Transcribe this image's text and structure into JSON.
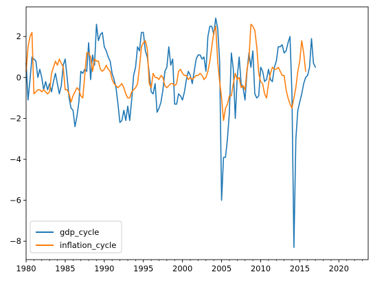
{
  "chart_data": {
    "type": "line",
    "title": "",
    "xlabel": "",
    "ylabel": "",
    "xlim": [
      1980.0,
      2023.75
    ],
    "ylim": [
      -8.9,
      3.45
    ],
    "x_ticks": [
      1980,
      1985,
      1990,
      1995,
      2000,
      2005,
      2010,
      2015,
      2020
    ],
    "y_ticks": [
      -8,
      -6,
      -4,
      -2,
      0,
      2
    ],
    "grid": false,
    "legend_position": "lower-left",
    "x_frequency": "quarterly",
    "x_start": 1980.0,
    "series": [
      {
        "name": "gdp_cycle",
        "color": "#1f77b4",
        "values": [
          0.7,
          -1.1,
          -0.1,
          1.0,
          0.9,
          0.8,
          0.0,
          0.4,
          0.0,
          -0.6,
          -0.2,
          -0.6,
          -0.3,
          -0.7,
          -0.2,
          0.2,
          -0.3,
          -0.8,
          -0.4,
          0.6,
          0.9,
          0.0,
          -1.0,
          -1.5,
          -1.6,
          -2.4,
          -1.9,
          -1.2,
          0.3,
          0.2,
          0.4,
          0.3,
          1.7,
          -0.1,
          1.1,
          0.6,
          2.6,
          1.8,
          2.1,
          2.2,
          1.5,
          1.3,
          1.0,
          0.8,
          0.2,
          -0.1,
          -0.5,
          -1.3,
          -2.2,
          -2.1,
          -1.6,
          -2.1,
          -1.4,
          -2.1,
          -1.1,
          0.1,
          0.5,
          1.5,
          1.3,
          2.2,
          2.2,
          1.3,
          1.0,
          0.2,
          -0.7,
          -0.8,
          -0.3,
          -1.7,
          -1.5,
          -1.2,
          -0.6,
          0.3,
          0.5,
          1.5,
          0.6,
          0.9,
          -1.3,
          -1.3,
          -0.8,
          -0.9,
          -1.1,
          -0.7,
          -0.1,
          0.3,
          0.1,
          -0.3,
          0.3,
          0.9,
          1.1,
          1.1,
          0.9,
          1.0,
          0.3,
          2.0,
          2.5,
          2.5,
          2.1,
          2.9,
          2.4,
          0.8,
          -6.0,
          -3.9,
          -3.9,
          -3.0,
          -1.7,
          1.2,
          0.4,
          -2.0,
          0.0,
          1.0,
          -0.3,
          -0.5,
          -1.1,
          0.3,
          1.2,
          0.5,
          1.3,
          -0.8,
          -1.0,
          -0.9,
          0.5,
          0.3,
          -0.2,
          -0.1,
          0.4,
          -0.1,
          -0.2,
          0.5,
          0.8,
          1.5,
          1.5,
          1.6,
          1.2,
          1.3,
          1.7,
          2.0,
          -0.8,
          -8.3,
          -3.0,
          -1.6,
          -1.2,
          -0.8,
          -0.3,
          0.0,
          0.1,
          0.5,
          1.9,
          0.7,
          0.5
        ]
      },
      {
        "name": "inflation_cycle",
        "color": "#ff7f0e",
        "values": [
          0.3,
          1.5,
          2.0,
          2.2,
          -0.8,
          -0.7,
          -0.6,
          -0.6,
          -0.7,
          -0.6,
          -0.7,
          -0.8,
          -0.7,
          0.2,
          0.5,
          0.8,
          0.6,
          0.9,
          0.7,
          0.5,
          -0.6,
          -0.6,
          -0.8,
          -1.2,
          -0.9,
          -0.7,
          -0.5,
          -0.6,
          -0.9,
          -1.0,
          0.1,
          1.2,
          1.2,
          1.0,
          0.3,
          0.9,
          0.8,
          0.8,
          0.4,
          0.3,
          0.4,
          0.6,
          0.4,
          0.3,
          -0.1,
          -0.3,
          -0.4,
          -0.5,
          -0.4,
          -0.3,
          -0.5,
          -0.8,
          -1.0,
          -1.0,
          -0.7,
          -0.6,
          -0.5,
          -0.3,
          0.5,
          1.5,
          1.7,
          1.8,
          1.4,
          -0.3,
          -0.5,
          0.2,
          0.0,
          0.0,
          -0.1,
          0.1,
          0.0,
          -0.4,
          -0.5,
          -0.4,
          -0.3,
          -0.3,
          -0.4,
          -0.3,
          0.3,
          0.4,
          0.2,
          0.1,
          0.1,
          -0.1,
          0.0,
          -0.1,
          0.0,
          0.1,
          0.1,
          0.2,
          0.1,
          -0.1,
          0.0,
          0.3,
          0.8,
          1.5,
          2.2,
          2.5,
          0.8,
          -0.2,
          -1.0,
          -2.1,
          -1.5,
          -1.3,
          -0.9,
          -0.9,
          -0.3,
          0.2,
          -0.1,
          0.0,
          -0.5,
          -0.4,
          -0.6,
          0.4,
          0.9,
          2.6,
          2.5,
          2.3,
          1.5,
          0.2,
          -0.2,
          -0.3,
          -0.8,
          -1.0,
          -0.3,
          0.2,
          0.5,
          0.4,
          0.4,
          0.5,
          0.3,
          0.1,
          0.1,
          -0.6,
          -1.0,
          -1.3,
          -1.5,
          -1.0,
          -0.5,
          0.3,
          0.8,
          1.8,
          1.2,
          0.3
        ]
      }
    ]
  }
}
